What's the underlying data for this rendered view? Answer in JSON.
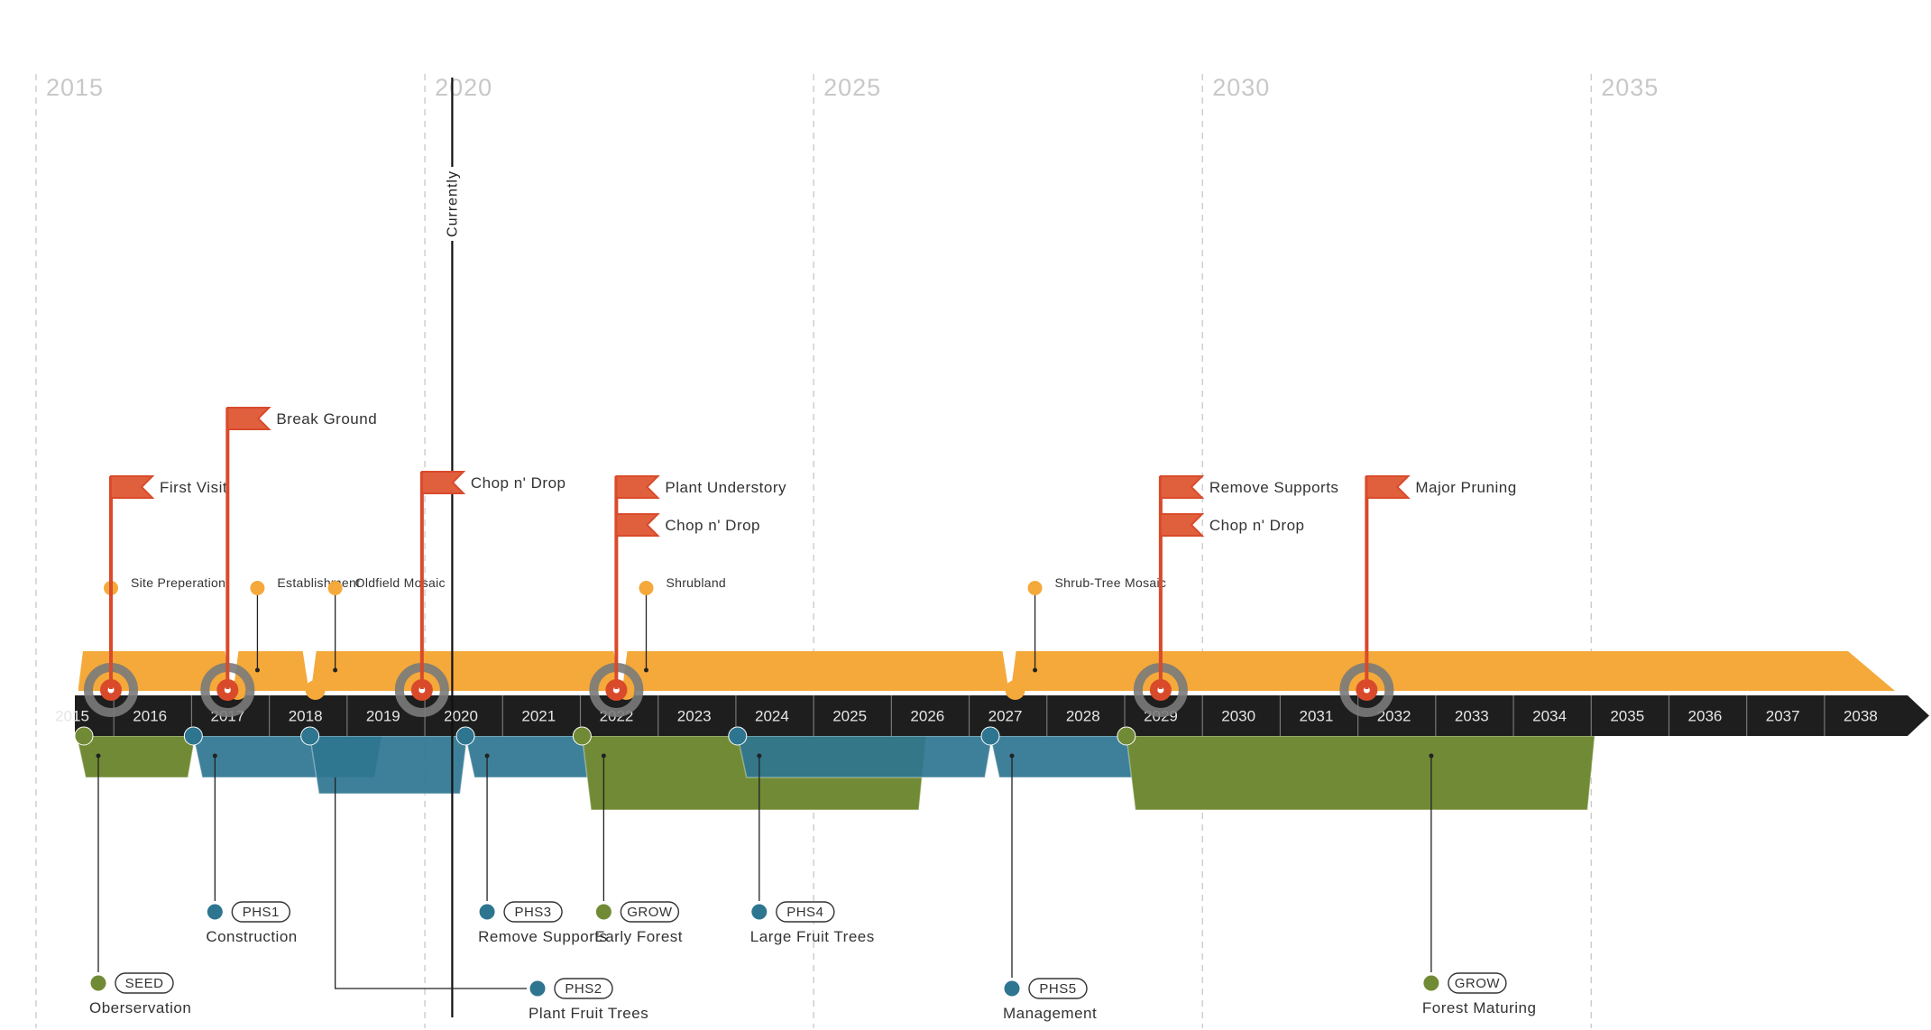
{
  "colors": {
    "axis": "#1e1e1e",
    "orange": "#f4a93a",
    "red": "#d94a2b",
    "flag": "#e0603e",
    "teal": "#2e7590",
    "olive": "#718a35",
    "grey": "#7a7a7a",
    "grid": "#c8c8c8"
  },
  "decades": [
    "2015",
    "2020",
    "2025",
    "2030",
    "2035"
  ],
  "years": [
    "2015",
    "2016",
    "2017",
    "2018",
    "2019",
    "2020",
    "2021",
    "2022",
    "2023",
    "2024",
    "2025",
    "2026",
    "2027",
    "2028",
    "2029",
    "2030",
    "2031",
    "2032",
    "2033",
    "2034",
    "2035",
    "2036",
    "2037",
    "2038"
  ],
  "current": {
    "label": "Currently",
    "year": 2019.25
  },
  "milestones": [
    {
      "year": 2015,
      "flags": [
        "First Visit"
      ]
    },
    {
      "year": 2016.5,
      "flags": [
        "Break Ground"
      ]
    },
    {
      "year": 2019,
      "flags": [
        "Chop n' Drop"
      ]
    },
    {
      "year": 2021.5,
      "flags": [
        "Plant Understory",
        "Chop n' Drop"
      ]
    },
    {
      "year": 2028.5,
      "flags": [
        "Remove Supports",
        "Chop n' Drop"
      ]
    },
    {
      "year": 2031.15,
      "flags": [
        "Major Pruning"
      ]
    }
  ],
  "succession_stages": [
    {
      "label": "Site Preperation",
      "start": 2015,
      "end": 2017
    },
    {
      "label": "Establishment",
      "start": 2017,
      "end": 2018
    },
    {
      "label": "Oldfield Mosaic",
      "start": 2018,
      "end": 2022
    },
    {
      "label": "Shrubland",
      "start": 2022,
      "end": 2027
    },
    {
      "label": "Shrub-Tree Mosaic",
      "start": 2027,
      "end": 2038.5
    }
  ],
  "phases": [
    {
      "code": "SEED",
      "name": "Oberservation",
      "color": "olive",
      "start": 2015,
      "end": 2016.5
    },
    {
      "code": "PHS1",
      "name": "Construction",
      "color": "teal",
      "start": 2016.5,
      "end": 2018.9
    },
    {
      "code": "PHS2",
      "name": "Plant Fruit Trees",
      "color": "teal",
      "start": 2018,
      "end": 2020
    },
    {
      "code": "PHS3",
      "name": "Remove Supports",
      "color": "teal",
      "start": 2020,
      "end": 2023.5
    },
    {
      "code": "GROW",
      "name": "Early Forest",
      "color": "olive",
      "start": 2021.5,
      "end": 2025.9
    },
    {
      "code": "PHS4",
      "name": "Large Fruit Trees",
      "color": "teal",
      "start": 2023.5,
      "end": 2026.75
    },
    {
      "code": "PHS5",
      "name": "Management",
      "color": "teal",
      "start": 2026.75,
      "end": 2031.2
    },
    {
      "code": "GROW",
      "name": "Forest Maturing",
      "color": "olive",
      "start": 2028.5,
      "end": 2034.5
    }
  ]
}
